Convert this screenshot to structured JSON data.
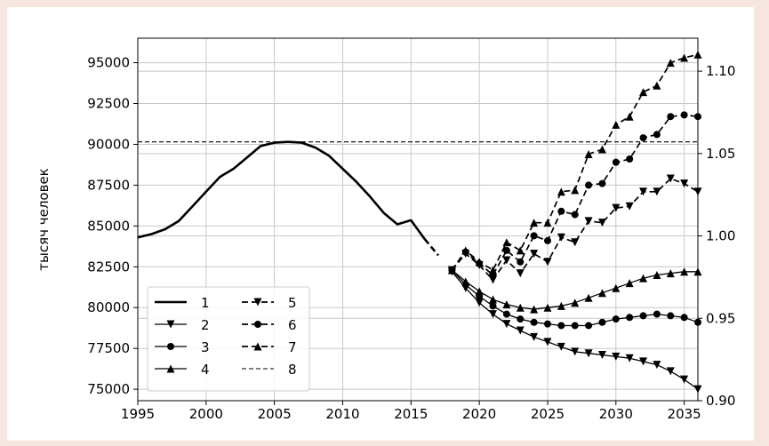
{
  "chart_data": {
    "type": "line",
    "xlabel": "",
    "ylabel": "тысяч человек",
    "xlim": [
      1995,
      2036
    ],
    "ylim": [
      74300,
      96500
    ],
    "y2lim": [
      0.9,
      1.12
    ],
    "x_ticks": [
      "1995",
      "2000",
      "2005",
      "2010",
      "2015",
      "2020",
      "2025",
      "2030",
      "2035"
    ],
    "y_ticks": [
      "75000",
      "77500",
      "80000",
      "82500",
      "85000",
      "87500",
      "90000",
      "92500",
      "95000"
    ],
    "y2_ticks": [
      "0.90",
      "0.95",
      "1.00",
      "1.05",
      "1.10"
    ],
    "grid": true,
    "legend_position": "lower-left",
    "series": [
      {
        "name": "1",
        "style": "solid",
        "marker": "none",
        "width": 2.6,
        "x": [
          1995,
          1996,
          1997,
          1998,
          1999,
          2000,
          2001,
          2002,
          2003,
          2004,
          2005,
          2006,
          2007,
          2008,
          2009,
          2010,
          2011,
          2012,
          2013,
          2014,
          2015,
          2016
        ],
        "y": [
          84300,
          84500,
          84800,
          85300,
          86200,
          87100,
          88000,
          88500,
          89200,
          89900,
          90100,
          90150,
          90100,
          89800,
          89300,
          88500,
          87700,
          86800,
          85800,
          85100,
          85350,
          84200
        ]
      },
      {
        "name": "",
        "style": "dashed",
        "marker": "none",
        "width": 2.6,
        "x": [
          2016,
          2017
        ],
        "y": [
          84200,
          83200
        ]
      },
      {
        "name": "2",
        "style": "solid",
        "marker": "triangle-down",
        "width": 1.3,
        "x": [
          2018,
          2019,
          2020,
          2021,
          2022,
          2023,
          2024,
          2025,
          2026,
          2027,
          2028,
          2029,
          2030,
          2031,
          2032,
          2033,
          2034,
          2035,
          2036
        ],
        "y": [
          82200,
          81200,
          80300,
          79600,
          79000,
          78600,
          78200,
          77900,
          77600,
          77300,
          77200,
          77100,
          77000,
          76900,
          76700,
          76500,
          76100,
          75600,
          75000
        ]
      },
      {
        "name": "3",
        "style": "solid",
        "marker": "circle",
        "width": 1.3,
        "x": [
          2018,
          2019,
          2020,
          2021,
          2022,
          2023,
          2024,
          2025,
          2026,
          2027,
          2028,
          2029,
          2030,
          2031,
          2032,
          2033,
          2034,
          2035,
          2036
        ],
        "y": [
          82300,
          81400,
          80700,
          80100,
          79600,
          79300,
          79100,
          79000,
          78900,
          78900,
          78900,
          79100,
          79300,
          79400,
          79500,
          79600,
          79500,
          79400,
          79100
        ]
      },
      {
        "name": "4",
        "style": "solid",
        "marker": "triangle-up",
        "width": 1.3,
        "x": [
          2018,
          2019,
          2020,
          2021,
          2022,
          2023,
          2024,
          2025,
          2026,
          2027,
          2028,
          2029,
          2030,
          2031,
          2032,
          2033,
          2034,
          2035,
          2036
        ],
        "y": [
          82300,
          81600,
          81000,
          80500,
          80200,
          80000,
          79900,
          80000,
          80100,
          80300,
          80600,
          80900,
          81200,
          81500,
          81800,
          82000,
          82100,
          82200,
          82200
        ]
      },
      {
        "name": "5",
        "style": "dashed",
        "marker": "triangle-down",
        "width": 1.7,
        "x": [
          2018,
          2019,
          2020,
          2021,
          2022,
          2023,
          2024,
          2025,
          2026,
          2027,
          2028,
          2029,
          2030,
          2031,
          2032,
          2033,
          2034,
          2035,
          2036
        ],
        "y": [
          82300,
          83300,
          82600,
          81700,
          82900,
          82100,
          83300,
          82800,
          84300,
          84000,
          85300,
          85200,
          86100,
          86200,
          87100,
          87100,
          87900,
          87600,
          87100
        ]
      },
      {
        "name": "6",
        "style": "dashed",
        "marker": "circle",
        "width": 1.7,
        "x": [
          2018,
          2019,
          2020,
          2021,
          2022,
          2023,
          2024,
          2025,
          2026,
          2027,
          2028,
          2029,
          2030,
          2031,
          2032,
          2033,
          2034,
          2035,
          2036
        ],
        "y": [
          82300,
          83400,
          82700,
          82000,
          83500,
          82800,
          84400,
          84100,
          85900,
          85700,
          87500,
          87600,
          88900,
          89100,
          90400,
          90600,
          91700,
          91800,
          91700
        ]
      },
      {
        "name": "7",
        "style": "dashed",
        "marker": "triangle-up",
        "width": 1.7,
        "x": [
          2018,
          2019,
          2020,
          2021,
          2022,
          2023,
          2024,
          2025,
          2026,
          2027,
          2028,
          2029,
          2030,
          2031,
          2032,
          2033,
          2034,
          2035,
          2036
        ],
        "y": [
          82300,
          83500,
          82800,
          82300,
          84000,
          83500,
          85200,
          85200,
          87100,
          87200,
          89400,
          89700,
          91200,
          91700,
          93200,
          93600,
          95000,
          95300,
          95500
        ]
      },
      {
        "name": "8",
        "style": "dashed",
        "marker": "none",
        "width": 1.1,
        "x": [
          1995,
          2036
        ],
        "y": [
          90150,
          90150
        ]
      }
    ]
  }
}
